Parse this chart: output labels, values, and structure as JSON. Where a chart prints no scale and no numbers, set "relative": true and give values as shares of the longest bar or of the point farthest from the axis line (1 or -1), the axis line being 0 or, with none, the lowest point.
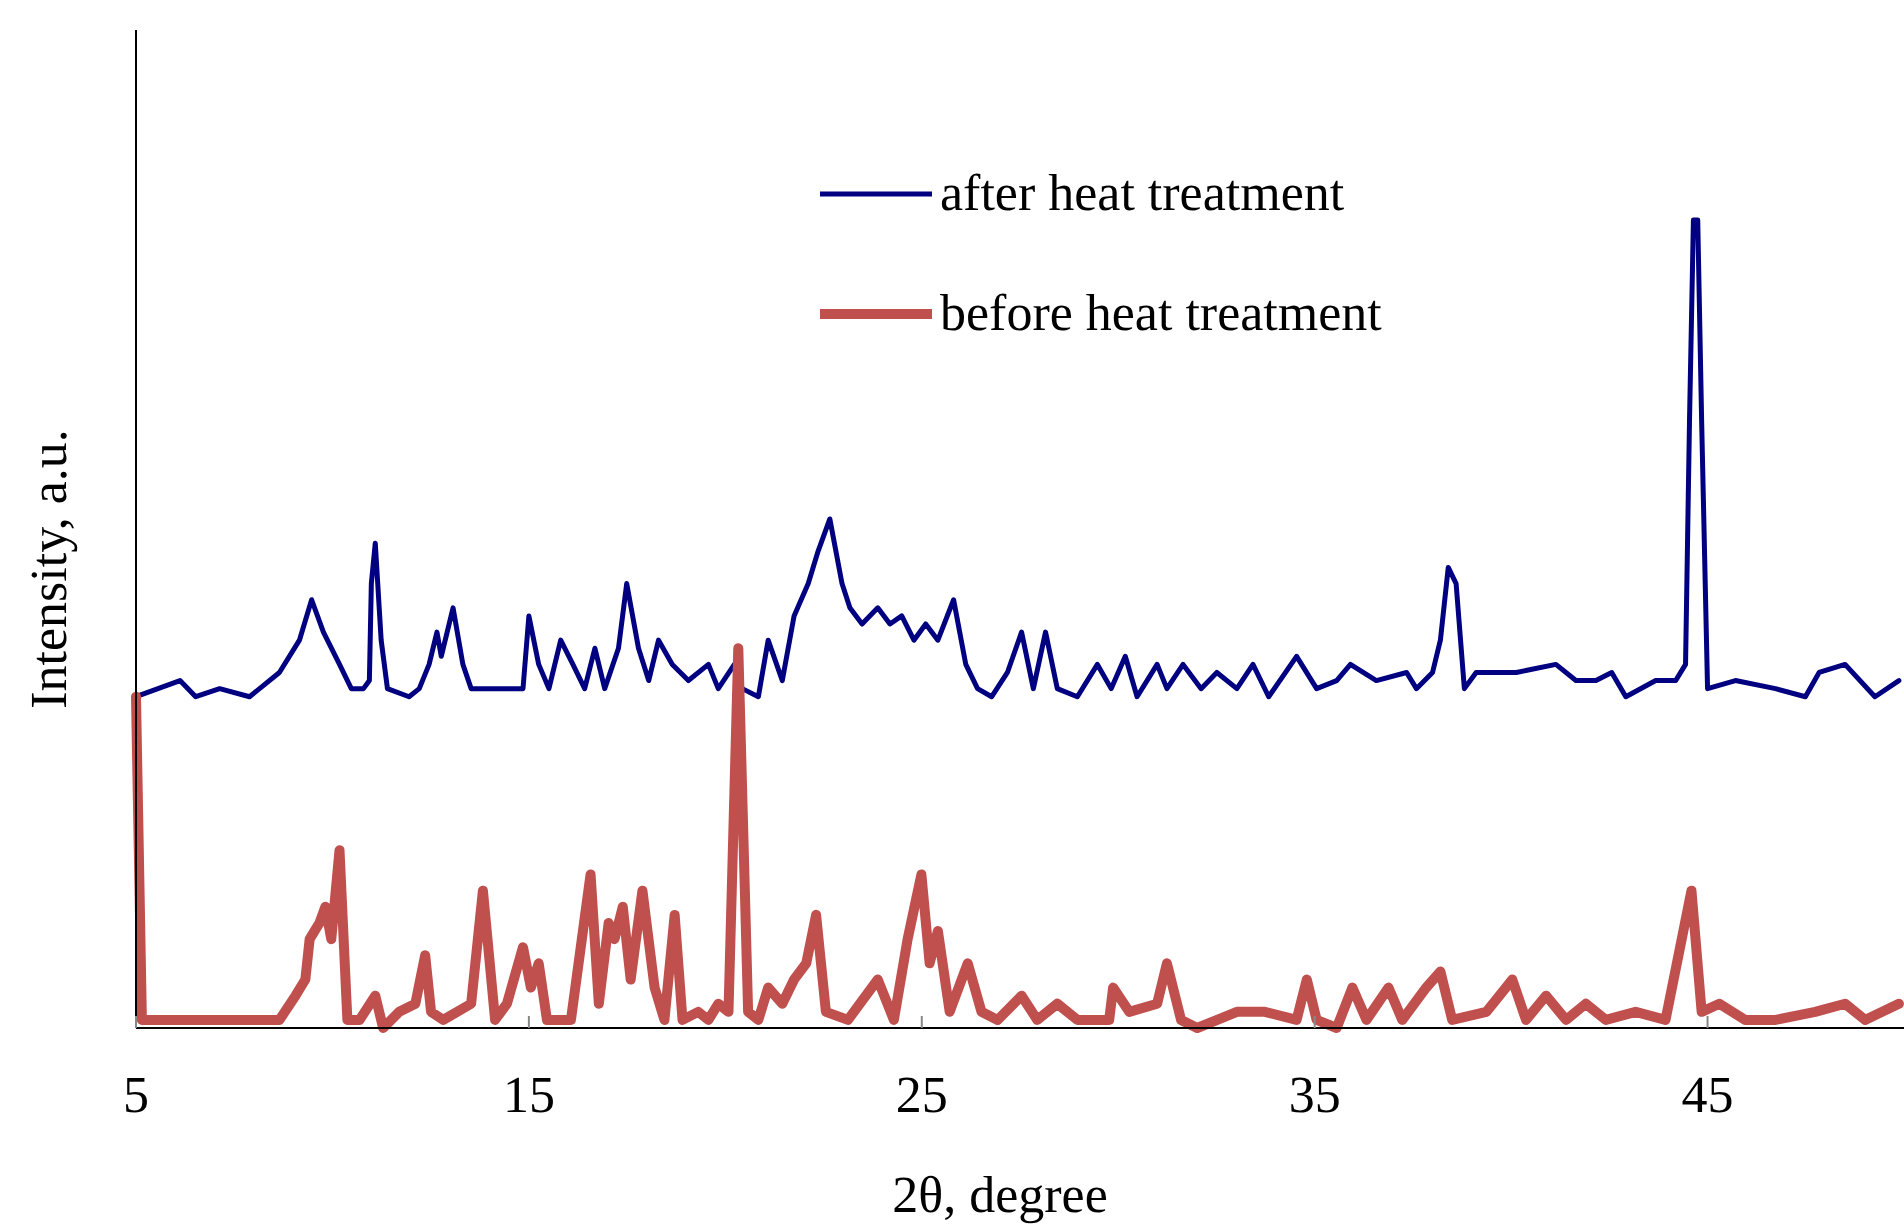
{
  "chart_data": {
    "type": "line",
    "relative": true,
    "xlabel": "2θ, degree",
    "ylabel": "Intensity, a.u.",
    "xlim": [
      5,
      50
    ],
    "xticks": [
      5,
      15,
      25,
      35,
      45
    ],
    "legend": "top",
    "series": [
      {
        "name": "after heat treatment",
        "color": "#000080",
        "x": [
          5.0,
          6.12,
          6.52,
          7.13,
          7.89,
          8.65,
          9.16,
          9.47,
          9.77,
          10.18,
          10.48,
          10.79,
          10.94,
          10.99,
          11.09,
          11.24,
          11.4,
          11.95,
          12.21,
          12.46,
          12.66,
          12.77,
          13.07,
          13.32,
          13.53,
          14.24,
          14.85,
          15.0,
          15.25,
          15.51,
          15.81,
          16.12,
          16.42,
          16.68,
          16.93,
          17.28,
          17.49,
          17.79,
          18.05,
          18.3,
          18.65,
          19.06,
          19.57,
          19.82,
          20.23,
          20.43,
          20.84,
          21.09,
          21.45,
          21.75,
          22.11,
          22.36,
          22.66,
          22.97,
          23.17,
          23.48,
          23.88,
          24.19,
          24.49,
          24.8,
          25.1,
          25.41,
          25.81,
          26.12,
          26.42,
          26.78,
          27.18,
          27.54,
          27.84,
          28.15,
          28.45,
          28.96,
          29.47,
          29.82,
          30.18,
          30.48,
          30.99,
          31.24,
          31.65,
          32.11,
          32.51,
          33.02,
          33.43,
          33.83,
          34.54,
          35.05,
          35.56,
          35.91,
          36.57,
          37.34,
          37.59,
          38.0,
          38.2,
          38.4,
          38.6,
          38.81,
          39.11,
          40.13,
          41.14,
          41.65,
          42.16,
          42.56,
          42.92,
          43.68,
          44.19,
          44.44,
          44.54,
          44.64,
          44.75,
          44.85,
          45.0,
          45.71,
          46.73,
          47.49,
          47.84,
          48.5,
          49.26,
          49.87
        ],
        "values": [
          0.41,
          0.43,
          0.41,
          0.42,
          0.41,
          0.44,
          0.48,
          0.53,
          0.49,
          0.45,
          0.42,
          0.42,
          0.43,
          0.55,
          0.6,
          0.48,
          0.42,
          0.41,
          0.42,
          0.45,
          0.49,
          0.46,
          0.52,
          0.45,
          0.42,
          0.42,
          0.42,
          0.51,
          0.45,
          0.42,
          0.48,
          0.45,
          0.42,
          0.47,
          0.42,
          0.47,
          0.55,
          0.47,
          0.43,
          0.48,
          0.45,
          0.43,
          0.45,
          0.42,
          0.45,
          0.42,
          0.41,
          0.48,
          0.43,
          0.51,
          0.55,
          0.59,
          0.63,
          0.55,
          0.52,
          0.5,
          0.52,
          0.5,
          0.51,
          0.48,
          0.5,
          0.48,
          0.53,
          0.45,
          0.42,
          0.41,
          0.44,
          0.49,
          0.42,
          0.49,
          0.42,
          0.41,
          0.45,
          0.42,
          0.46,
          0.41,
          0.45,
          0.42,
          0.45,
          0.42,
          0.44,
          0.42,
          0.45,
          0.41,
          0.46,
          0.42,
          0.43,
          0.45,
          0.43,
          0.44,
          0.42,
          0.44,
          0.48,
          0.57,
          0.55,
          0.42,
          0.44,
          0.44,
          0.45,
          0.43,
          0.43,
          0.44,
          0.41,
          0.43,
          0.43,
          0.45,
          0.75,
          1.0,
          1.0,
          0.75,
          0.42,
          0.43,
          0.42,
          0.41,
          0.44,
          0.45,
          0.41,
          0.43
        ]
      },
      {
        "name": "before heat treatment",
        "color": "#c0504d",
        "x": [
          5.0,
          5.15,
          8.65,
          9.06,
          9.31,
          9.42,
          9.67,
          9.82,
          9.97,
          10.18,
          10.38,
          10.69,
          11.09,
          11.29,
          11.7,
          12.11,
          12.36,
          12.51,
          12.82,
          13.53,
          13.83,
          14.14,
          14.44,
          14.85,
          15.05,
          15.25,
          15.46,
          16.07,
          16.57,
          16.78,
          17.03,
          17.18,
          17.39,
          17.59,
          17.89,
          18.2,
          18.45,
          18.71,
          18.91,
          19.31,
          19.57,
          19.82,
          20.08,
          20.33,
          20.58,
          20.84,
          21.09,
          21.45,
          21.75,
          22.06,
          22.31,
          22.56,
          23.12,
          23.88,
          24.29,
          24.64,
          24.99,
          25.2,
          25.41,
          25.71,
          26.17,
          26.52,
          26.93,
          27.54,
          27.94,
          28.45,
          28.96,
          29.77,
          29.87,
          30.28,
          30.99,
          31.24,
          31.6,
          32.01,
          33.02,
          33.73,
          34.54,
          34.8,
          35.05,
          35.56,
          35.96,
          36.32,
          36.88,
          37.23,
          37.84,
          38.2,
          38.5,
          39.37,
          40.03,
          40.38,
          40.89,
          41.4,
          41.9,
          42.41,
          43.17,
          43.93,
          44.59,
          44.85,
          45.3,
          45.96,
          46.73,
          47.74,
          48.5,
          49.01,
          49.87
        ],
        "values": [
          0.41,
          0.01,
          0.01,
          0.04,
          0.06,
          0.11,
          0.13,
          0.15,
          0.11,
          0.22,
          0.01,
          0.01,
          0.04,
          0.0,
          0.02,
          0.03,
          0.09,
          0.02,
          0.01,
          0.03,
          0.17,
          0.01,
          0.03,
          0.1,
          0.05,
          0.08,
          0.01,
          0.01,
          0.19,
          0.03,
          0.13,
          0.11,
          0.15,
          0.06,
          0.17,
          0.05,
          0.01,
          0.14,
          0.01,
          0.02,
          0.01,
          0.03,
          0.02,
          0.47,
          0.02,
          0.01,
          0.05,
          0.03,
          0.06,
          0.08,
          0.14,
          0.02,
          0.01,
          0.06,
          0.01,
          0.11,
          0.19,
          0.08,
          0.12,
          0.02,
          0.08,
          0.02,
          0.01,
          0.04,
          0.01,
          0.03,
          0.01,
          0.01,
          0.05,
          0.02,
          0.03,
          0.08,
          0.01,
          0.0,
          0.02,
          0.02,
          0.01,
          0.06,
          0.01,
          0.0,
          0.05,
          0.01,
          0.05,
          0.01,
          0.05,
          0.07,
          0.01,
          0.02,
          0.06,
          0.01,
          0.04,
          0.01,
          0.03,
          0.01,
          0.02,
          0.01,
          0.17,
          0.02,
          0.03,
          0.01,
          0.01,
          0.02,
          0.03,
          0.01,
          0.03
        ]
      }
    ]
  }
}
